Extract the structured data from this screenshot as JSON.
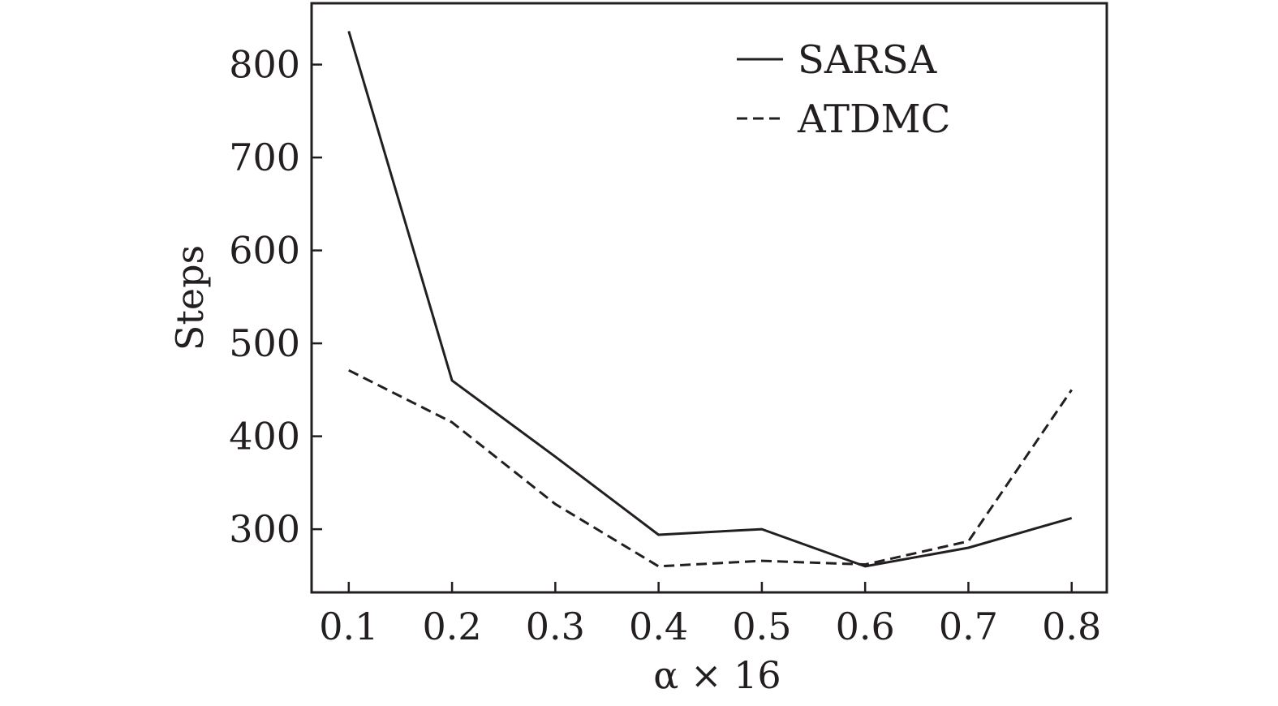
{
  "chart_data": {
    "type": "line",
    "xlabel": "α × 16",
    "ylabel": "Steps",
    "x": [
      0.1,
      0.2,
      0.3,
      0.4,
      0.5,
      0.6,
      0.7,
      0.8
    ],
    "x_ticks": [
      "0.1",
      "0.2",
      "0.3",
      "0.4",
      "0.5",
      "0.6",
      "0.7",
      "0.8"
    ],
    "y_ticks": [
      300,
      400,
      500,
      600,
      700,
      800
    ],
    "xlim": [
      0.064,
      0.834
    ],
    "ylim": [
      232,
      866
    ],
    "grid": false,
    "legend_position": "top-right",
    "series": [
      {
        "name": "SARSA",
        "line_style": "solid",
        "color": "#231f20",
        "values": [
          836,
          460,
          378,
          294,
          300,
          260,
          280,
          312
        ]
      },
      {
        "name": "ATDMC",
        "line_style": "dashed",
        "color": "#231f20",
        "values": [
          471,
          415,
          327,
          260,
          266,
          262,
          287,
          450
        ]
      }
    ]
  }
}
